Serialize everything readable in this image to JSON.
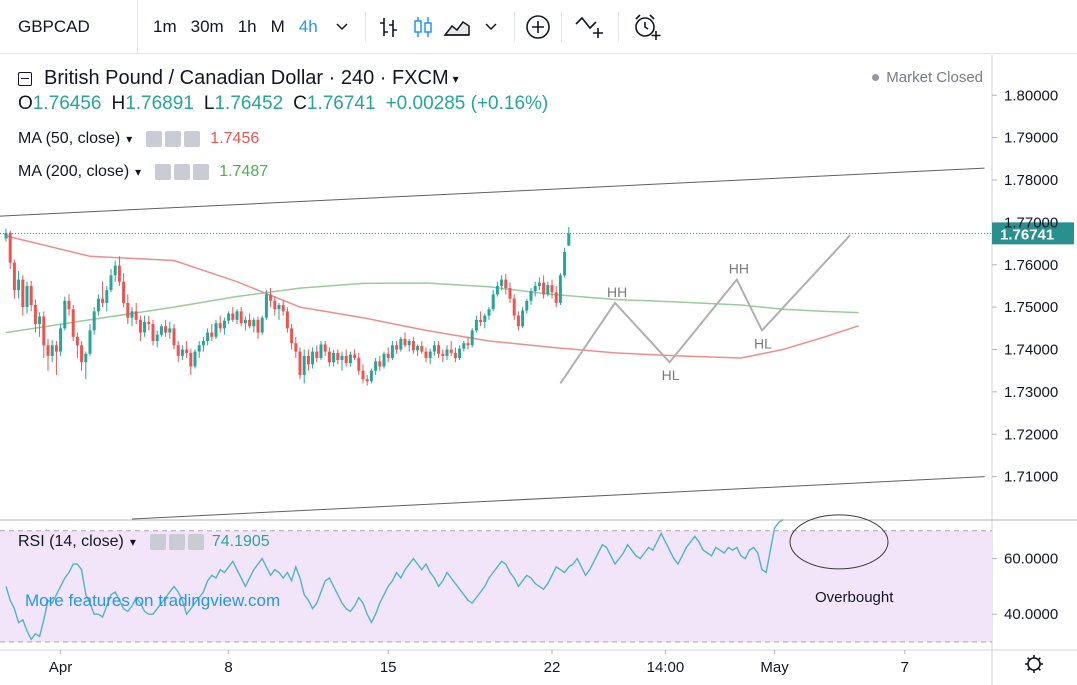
{
  "toolbar": {
    "symbol": "GBPCAD",
    "intervals": [
      {
        "label": "1m",
        "active": false
      },
      {
        "label": "30m",
        "active": false
      },
      {
        "label": "1h",
        "active": false
      },
      {
        "label": "M",
        "active": false
      },
      {
        "label": "4h",
        "active": true
      }
    ],
    "icons": [
      "chevron-down-icon",
      "bar-chart-icon",
      "candlestick-icon",
      "area-chart-icon",
      "chevron-down-icon",
      "plus-circle-icon",
      "indicators-icon",
      "alarm-icon"
    ]
  },
  "legend": {
    "title": "British Pound / Canadian Dollar · 240 · FXCM",
    "open_label": "O",
    "open": "1.76456",
    "high_label": "H",
    "high": "1.76891",
    "low_label": "L",
    "low": "1.76452",
    "close_label": "C",
    "close": "1.76741",
    "change": "+0.00285 (+0.16%)",
    "ma50_label": "MA (50, close)",
    "ma50_value": "1.7456",
    "ma200_label": "MA (200, close)",
    "ma200_value": "1.7487",
    "market_status": "Market Closed"
  },
  "rsi": {
    "label": "RSI (14, close)",
    "value": "74.1905",
    "annotation": "Overbought"
  },
  "watermark": "More features on tradingview.com",
  "colors": {
    "up": "#26a69a",
    "down": "#ef5350",
    "ma50": "#f18c8c",
    "ma200": "#99cc99",
    "rsi_line": "#4fb3c9",
    "rsi_band": "#f3e5f9",
    "pattern": "#b0b0b0",
    "channel": "#606060",
    "last_price_bg": "#2a8f8f",
    "accent": "#2196f3"
  },
  "chart_data": {
    "type": "candlestick",
    "symbol": "GBPCAD",
    "timeframe": "240",
    "y_ticks": [
      1.8,
      1.79,
      1.78,
      1.77,
      1.76,
      1.75,
      1.74,
      1.73,
      1.72,
      1.71
    ],
    "y_tick_labels": [
      "1.80000",
      "1.79000",
      "1.78000",
      "1.77000",
      "1.76000",
      "1.75000",
      "1.74000",
      "1.73000",
      "1.72000",
      "1.71000"
    ],
    "ylim": [
      1.7,
      1.8095
    ],
    "x_ticks": [
      {
        "label": "Apr",
        "index": 13
      },
      {
        "label": "8",
        "index": 53
      },
      {
        "label": "15",
        "index": 91
      },
      {
        "label": "22",
        "index": 130
      },
      {
        "label": "14:00",
        "index": 157
      },
      {
        "label": "May",
        "index": 183
      },
      {
        "label": "7",
        "index": 214
      }
    ],
    "last_price": 1.76741,
    "last_price_label": "1.76741",
    "candles": [
      [
        1.7662,
        1.7685,
        1.7655,
        1.7675
      ],
      [
        1.7675,
        1.768,
        1.759,
        1.7605
      ],
      [
        1.7605,
        1.7612,
        1.752,
        1.754
      ],
      [
        1.754,
        1.7585,
        1.752,
        1.7565
      ],
      [
        1.7565,
        1.7575,
        1.748,
        1.75
      ],
      [
        1.75,
        1.756,
        1.7485,
        1.755
      ],
      [
        1.755,
        1.7562,
        1.749,
        1.7505
      ],
      [
        1.7505,
        1.7518,
        1.744,
        1.746
      ],
      [
        1.746,
        1.7488,
        1.743,
        1.7478
      ],
      [
        1.7478,
        1.749,
        1.738,
        1.741
      ],
      [
        1.741,
        1.7425,
        1.735,
        1.7385
      ],
      [
        1.7385,
        1.7422,
        1.737,
        1.741
      ],
      [
        1.741,
        1.742,
        1.734,
        1.7395
      ],
      [
        1.7395,
        1.746,
        1.7385,
        1.745
      ],
      [
        1.745,
        1.7525,
        1.7445,
        1.7515
      ],
      [
        1.7515,
        1.753,
        1.748,
        1.7495
      ],
      [
        1.7495,
        1.7505,
        1.742,
        1.743
      ],
      [
        1.743,
        1.744,
        1.738,
        1.741
      ],
      [
        1.741,
        1.742,
        1.735,
        1.737
      ],
      [
        1.737,
        1.7395,
        1.733,
        1.739
      ],
      [
        1.739,
        1.746,
        1.7385,
        1.7445
      ],
      [
        1.7445,
        1.75,
        1.7435,
        1.749
      ],
      [
        1.749,
        1.753,
        1.748,
        1.752
      ],
      [
        1.752,
        1.756,
        1.75,
        1.751
      ],
      [
        1.751,
        1.755,
        1.749,
        1.754
      ],
      [
        1.754,
        1.759,
        1.7535,
        1.7575
      ],
      [
        1.7575,
        1.761,
        1.756,
        1.7598
      ],
      [
        1.7598,
        1.762,
        1.755,
        1.756
      ],
      [
        1.756,
        1.758,
        1.75,
        1.751
      ],
      [
        1.751,
        1.753,
        1.746,
        1.7475
      ],
      [
        1.7475,
        1.75,
        1.7455,
        1.749
      ],
      [
        1.749,
        1.751,
        1.746,
        1.747
      ],
      [
        1.747,
        1.748,
        1.742,
        1.744
      ],
      [
        1.744,
        1.748,
        1.743,
        1.7465
      ],
      [
        1.7465,
        1.748,
        1.7445,
        1.746
      ],
      [
        1.746,
        1.747,
        1.741,
        1.742
      ],
      [
        1.742,
        1.7445,
        1.7405,
        1.7435
      ],
      [
        1.7435,
        1.746,
        1.743,
        1.7455
      ],
      [
        1.7455,
        1.747,
        1.743,
        1.744
      ],
      [
        1.744,
        1.7465,
        1.7425,
        1.745
      ],
      [
        1.745,
        1.746,
        1.74,
        1.741
      ],
      [
        1.741,
        1.742,
        1.737,
        1.7385
      ],
      [
        1.7385,
        1.741,
        1.7375,
        1.74
      ],
      [
        1.74,
        1.742,
        1.738,
        1.7392
      ],
      [
        1.7392,
        1.7402,
        1.734,
        1.736
      ],
      [
        1.736,
        1.74,
        1.7355,
        1.7395
      ],
      [
        1.7395,
        1.742,
        1.738,
        1.741
      ],
      [
        1.741,
        1.743,
        1.7395,
        1.742
      ],
      [
        1.742,
        1.745,
        1.741,
        1.744
      ],
      [
        1.744,
        1.746,
        1.742,
        1.743
      ],
      [
        1.743,
        1.747,
        1.7425,
        1.7462
      ],
      [
        1.7462,
        1.748,
        1.744,
        1.745
      ],
      [
        1.745,
        1.7475,
        1.7435,
        1.7468
      ],
      [
        1.7468,
        1.749,
        1.746,
        1.7485
      ],
      [
        1.7485,
        1.75,
        1.7465,
        1.747
      ],
      [
        1.747,
        1.7495,
        1.746,
        1.749
      ],
      [
        1.749,
        1.75,
        1.7455,
        1.7462
      ],
      [
        1.7462,
        1.7478,
        1.7445,
        1.747
      ],
      [
        1.747,
        1.7485,
        1.745,
        1.7455
      ],
      [
        1.7455,
        1.7475,
        1.744,
        1.747
      ],
      [
        1.747,
        1.7478,
        1.7425,
        1.744
      ],
      [
        1.744,
        1.748,
        1.7435,
        1.7475
      ],
      [
        1.7475,
        1.754,
        1.747,
        1.753
      ],
      [
        1.753,
        1.7545,
        1.75,
        1.7515
      ],
      [
        1.7515,
        1.7525,
        1.748,
        1.7495
      ],
      [
        1.7495,
        1.751,
        1.747,
        1.7505
      ],
      [
        1.7505,
        1.7515,
        1.748,
        1.749
      ],
      [
        1.749,
        1.75,
        1.744,
        1.745
      ],
      [
        1.745,
        1.746,
        1.74,
        1.7415
      ],
      [
        1.7415,
        1.743,
        1.738,
        1.7395
      ],
      [
        1.7395,
        1.7405,
        1.733,
        1.734
      ],
      [
        1.734,
        1.74,
        1.732,
        1.7385
      ],
      [
        1.7385,
        1.74,
        1.735,
        1.7365
      ],
      [
        1.7365,
        1.7405,
        1.7355,
        1.7395
      ],
      [
        1.7395,
        1.741,
        1.737,
        1.738
      ],
      [
        1.738,
        1.742,
        1.7375,
        1.7412
      ],
      [
        1.7412,
        1.742,
        1.7385,
        1.7395
      ],
      [
        1.7395,
        1.7405,
        1.736,
        1.737
      ],
      [
        1.737,
        1.74,
        1.736,
        1.7392
      ],
      [
        1.7392,
        1.74,
        1.7365,
        1.7375
      ],
      [
        1.7375,
        1.7395,
        1.735,
        1.7385
      ],
      [
        1.7385,
        1.74,
        1.736,
        1.7368
      ],
      [
        1.7368,
        1.7395,
        1.736,
        1.7388
      ],
      [
        1.7388,
        1.74,
        1.7375,
        1.738
      ],
      [
        1.738,
        1.7392,
        1.734,
        1.735
      ],
      [
        1.735,
        1.7365,
        1.732,
        1.733
      ],
      [
        1.733,
        1.734,
        1.7315,
        1.7325
      ],
      [
        1.7325,
        1.7355,
        1.732,
        1.735
      ],
      [
        1.735,
        1.738,
        1.734,
        1.7372
      ],
      [
        1.7372,
        1.7385,
        1.735,
        1.736
      ],
      [
        1.736,
        1.7395,
        1.7355,
        1.739
      ],
      [
        1.739,
        1.7405,
        1.737,
        1.738
      ],
      [
        1.738,
        1.742,
        1.7375,
        1.741
      ],
      [
        1.741,
        1.742,
        1.739,
        1.74
      ],
      [
        1.74,
        1.743,
        1.7395,
        1.7425
      ],
      [
        1.7425,
        1.744,
        1.7405,
        1.741
      ],
      [
        1.741,
        1.7425,
        1.7395,
        1.742
      ],
      [
        1.742,
        1.743,
        1.739,
        1.7398
      ],
      [
        1.7398,
        1.7412,
        1.7385,
        1.7408
      ],
      [
        1.7408,
        1.742,
        1.739,
        1.7395
      ],
      [
        1.7395,
        1.7405,
        1.737,
        1.738
      ],
      [
        1.738,
        1.7402,
        1.7365,
        1.7395
      ],
      [
        1.7395,
        1.742,
        1.7385,
        1.741
      ],
      [
        1.741,
        1.742,
        1.738,
        1.739
      ],
      [
        1.739,
        1.74,
        1.737,
        1.7385
      ],
      [
        1.7385,
        1.741,
        1.7375,
        1.74
      ],
      [
        1.74,
        1.742,
        1.7385,
        1.7392
      ],
      [
        1.7392,
        1.7405,
        1.737,
        1.738
      ],
      [
        1.738,
        1.741,
        1.7375,
        1.7402
      ],
      [
        1.7402,
        1.742,
        1.7395,
        1.7415
      ],
      [
        1.7415,
        1.743,
        1.74,
        1.741
      ],
      [
        1.741,
        1.745,
        1.7405,
        1.7445
      ],
      [
        1.7445,
        1.748,
        1.744,
        1.747
      ],
      [
        1.747,
        1.749,
        1.7455,
        1.7465
      ],
      [
        1.7465,
        1.7485,
        1.745,
        1.748
      ],
      [
        1.748,
        1.75,
        1.747,
        1.7495
      ],
      [
        1.7495,
        1.754,
        1.749,
        1.753
      ],
      [
        1.753,
        1.756,
        1.7525,
        1.755
      ],
      [
        1.755,
        1.7575,
        1.754,
        1.7565
      ],
      [
        1.7565,
        1.7578,
        1.753,
        1.7545
      ],
      [
        1.7545,
        1.7558,
        1.751,
        1.752
      ],
      [
        1.752,
        1.753,
        1.747,
        1.748
      ],
      [
        1.748,
        1.749,
        1.7445,
        1.7455
      ],
      [
        1.7455,
        1.75,
        1.745,
        1.7492
      ],
      [
        1.7492,
        1.752,
        1.7485,
        1.7515
      ],
      [
        1.7515,
        1.7545,
        1.7505,
        1.7538
      ],
      [
        1.7538,
        1.756,
        1.7525,
        1.755
      ],
      [
        1.755,
        1.757,
        1.754,
        1.7558
      ],
      [
        1.7558,
        1.7575,
        1.752,
        1.753
      ],
      [
        1.753,
        1.756,
        1.7525,
        1.7552
      ],
      [
        1.7552,
        1.7565,
        1.752,
        1.7535
      ],
      [
        1.7535,
        1.755,
        1.75,
        1.751
      ],
      [
        1.751,
        1.758,
        1.7505,
        1.7575
      ],
      [
        1.7575,
        1.764,
        1.757,
        1.763
      ],
      [
        1.7645,
        1.7689,
        1.7645,
        1.7674
      ]
    ],
    "ma50": {
      "name": "MA (50, close)",
      "points": [
        [
          0,
          1.7668
        ],
        [
          20,
          1.762
        ],
        [
          40,
          1.761
        ],
        [
          55,
          1.756
        ],
        [
          70,
          1.75
        ],
        [
          85,
          1.7475
        ],
        [
          100,
          1.7445
        ],
        [
          115,
          1.742
        ],
        [
          130,
          1.7405
        ],
        [
          145,
          1.7392
        ],
        [
          160,
          1.7385
        ],
        [
          175,
          1.738
        ],
        [
          185,
          1.74
        ],
        [
          195,
          1.743
        ],
        [
          203,
          1.7456
        ]
      ]
    },
    "ma200": {
      "name": "MA (200, close)",
      "points": [
        [
          0,
          1.744
        ],
        [
          20,
          1.747
        ],
        [
          40,
          1.75
        ],
        [
          55,
          1.7525
        ],
        [
          70,
          1.7545
        ],
        [
          85,
          1.7556
        ],
        [
          100,
          1.7557
        ],
        [
          115,
          1.7548
        ],
        [
          130,
          1.753
        ],
        [
          145,
          1.7518
        ],
        [
          160,
          1.7512
        ],
        [
          175,
          1.7505
        ],
        [
          185,
          1.7495
        ],
        [
          195,
          1.749
        ],
        [
          203,
          1.7487
        ]
      ]
    },
    "channel": [
      {
        "from": [
          -3,
          1.7714
        ],
        "to": [
          233,
          1.7828
        ]
      },
      {
        "from": [
          30,
          1.7
        ],
        "to": [
          233,
          1.71
        ]
      }
    ],
    "swing_pattern": {
      "points": [
        [
          132,
          1.732
        ],
        [
          145,
          1.751
        ],
        [
          158,
          1.737
        ],
        [
          174,
          1.7565
        ],
        [
          180,
          1.7445
        ],
        [
          201,
          1.767
        ]
      ],
      "labels": [
        {
          "text": "HH",
          "index": 145,
          "price": 1.751
        },
        {
          "text": "HL",
          "index": 158,
          "price": 1.737
        },
        {
          "text": "HH",
          "index": 174,
          "price": 1.7565
        },
        {
          "text": "HL",
          "index": 180,
          "price": 1.7445
        }
      ]
    },
    "rsi": {
      "name": "RSI (14, close)",
      "y_ticks": [
        60,
        40
      ],
      "y_tick_labels": [
        "60.0000",
        "40.0000"
      ],
      "ylim": [
        27.5,
        73.5
      ],
      "overbought": 70,
      "oversold": 30,
      "values": [
        50,
        45,
        42,
        37,
        38,
        34,
        31,
        33,
        32,
        38,
        45,
        44,
        47,
        50,
        53,
        55,
        58,
        58,
        56,
        47,
        44,
        40,
        40,
        39,
        43,
        47,
        48,
        45,
        42,
        41,
        43,
        46,
        44,
        41,
        40,
        40,
        42,
        44,
        46,
        48,
        50,
        48,
        45,
        40,
        42,
        44,
        46,
        48,
        52,
        54,
        53,
        56,
        55,
        57,
        59,
        56,
        53,
        50,
        53,
        56,
        58,
        60,
        57,
        54,
        56,
        55,
        53,
        55,
        52,
        57,
        53,
        47,
        45,
        42,
        44,
        48,
        52,
        53,
        50,
        47,
        44,
        42,
        41,
        43,
        46,
        44,
        40,
        37,
        40,
        44,
        47,
        50,
        52,
        55,
        53,
        56,
        58,
        60,
        58,
        56,
        58,
        55,
        53,
        50,
        52,
        55,
        53,
        51,
        49,
        47,
        45,
        44,
        46,
        48,
        50,
        53,
        55,
        57,
        59,
        58,
        55,
        53,
        50,
        52,
        54,
        53,
        51,
        50,
        49,
        51,
        54,
        57,
        56,
        55,
        57,
        58,
        60,
        57,
        54,
        56,
        59,
        62,
        65,
        64,
        61,
        58,
        60,
        62,
        65,
        63,
        61,
        60,
        62,
        64,
        63,
        66,
        69,
        66,
        63,
        60,
        58,
        61,
        64,
        66,
        68,
        66,
        63,
        62,
        61,
        64,
        63,
        62,
        64,
        63,
        64,
        61,
        60,
        63,
        64,
        62,
        56,
        55,
        63,
        71,
        73,
        74
      ]
    }
  }
}
